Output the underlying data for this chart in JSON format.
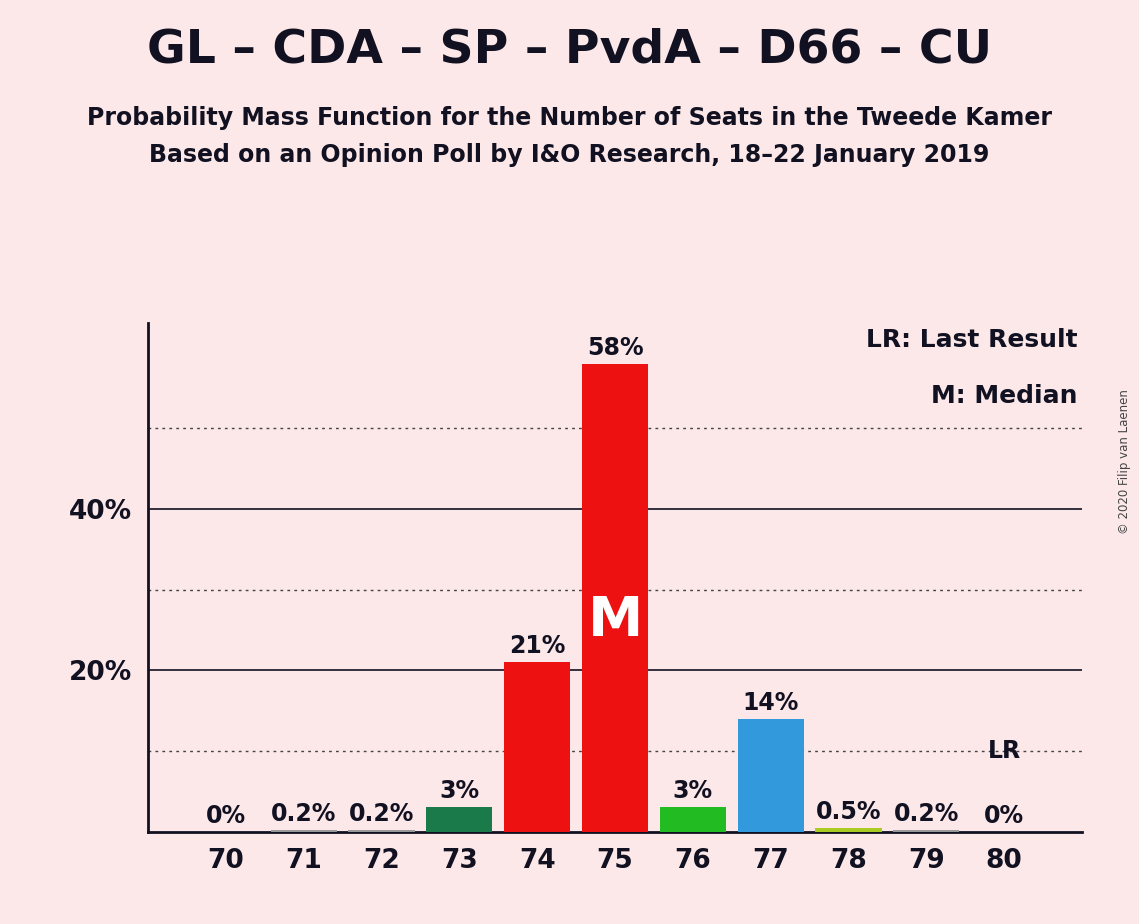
{
  "title": "GL – CDA – SP – PvdA – D66 – CU",
  "subtitle1": "Probability Mass Function for the Number of Seats in the Tweede Kamer",
  "subtitle2": "Based on an Opinion Poll by I&O Research, 18–22 January 2019",
  "copyright": "© 2020 Filip van Laenen",
  "legend_lr": "LR: Last Result",
  "legend_m": "M: Median",
  "background_color": "#fce8e8",
  "bar_data": [
    {
      "seat": 70,
      "pct": 0.0,
      "label": "0%",
      "color": "#bbbbbb",
      "is_lr": false,
      "is_median": false
    },
    {
      "seat": 71,
      "pct": 0.2,
      "label": "0.2%",
      "color": "#999999",
      "is_lr": false,
      "is_median": false
    },
    {
      "seat": 72,
      "pct": 0.2,
      "label": "0.2%",
      "color": "#999999",
      "is_lr": false,
      "is_median": false
    },
    {
      "seat": 73,
      "pct": 3.0,
      "label": "3%",
      "color": "#1a7a4a",
      "is_lr": false,
      "is_median": false
    },
    {
      "seat": 74,
      "pct": 21.0,
      "label": "21%",
      "color": "#ee1111",
      "is_lr": false,
      "is_median": false
    },
    {
      "seat": 75,
      "pct": 58.0,
      "label": "58%",
      "color": "#ee1111",
      "is_lr": false,
      "is_median": true
    },
    {
      "seat": 76,
      "pct": 3.0,
      "label": "3%",
      "color": "#22bb22",
      "is_lr": false,
      "is_median": false
    },
    {
      "seat": 77,
      "pct": 14.0,
      "label": "14%",
      "color": "#3399dd",
      "is_lr": false,
      "is_median": false
    },
    {
      "seat": 78,
      "pct": 0.5,
      "label": "0.5%",
      "color": "#aacc22",
      "is_lr": false,
      "is_median": false
    },
    {
      "seat": 79,
      "pct": 0.2,
      "label": "0.2%",
      "color": "#999999",
      "is_lr": false,
      "is_median": false
    },
    {
      "seat": 80,
      "pct": 0.0,
      "label": "0%",
      "color": "#bbbbbb",
      "is_lr": true,
      "is_median": false
    }
  ],
  "ylim": [
    0,
    63
  ],
  "solid_grid_yticks": [
    20,
    40
  ],
  "dotted_grid_yticks": [
    10,
    30,
    50
  ],
  "xlim": [
    69.0,
    81.0
  ],
  "xticks": [
    70,
    71,
    72,
    73,
    74,
    75,
    76,
    77,
    78,
    79,
    80
  ],
  "bar_width": 0.85,
  "title_fontsize": 34,
  "subtitle_fontsize": 17,
  "label_fontsize": 17,
  "tick_fontsize": 19,
  "legend_fontsize": 18,
  "median_fontsize": 40,
  "lr_label_fontsize": 17
}
